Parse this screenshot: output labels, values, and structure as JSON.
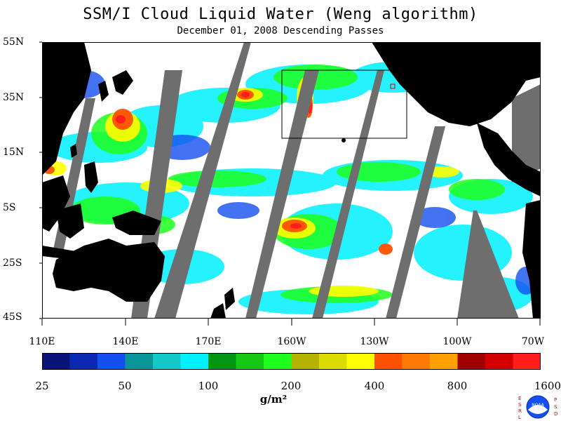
{
  "title": "SSM/I Cloud Liquid Water (Weng algorithm)",
  "subtitle": "December 01, 2008  Descending Passes",
  "lat_labels": [
    "55N",
    "35N",
    "15N",
    "5S",
    "25S",
    "45S"
  ],
  "lon_labels": [
    "110E",
    "140E",
    "170E",
    "160W",
    "130W",
    "100W",
    "70W"
  ],
  "colorbar": {
    "ticks": [
      "25",
      "50",
      "100",
      "200",
      "400",
      "800",
      "1600"
    ],
    "unit": "g/m²",
    "colors": [
      "#0a1478",
      "#0a28b4",
      "#1450f0",
      "#0a9696",
      "#14c8c8",
      "#00f0ff",
      "#009614",
      "#14c814",
      "#1eff1e",
      "#b4b400",
      "#dcdc00",
      "#ffff00",
      "#ff5000",
      "#ff7800",
      "#ffa000",
      "#a00000",
      "#d20000",
      "#ff1e1e"
    ]
  },
  "logo": {
    "text": "NOAA",
    "left_letters": "ESRL",
    "right_letters": "PSD"
  },
  "map_colors": {
    "land": "#000000",
    "no_data": "#6e6e6e",
    "clear": "#ffffff"
  }
}
